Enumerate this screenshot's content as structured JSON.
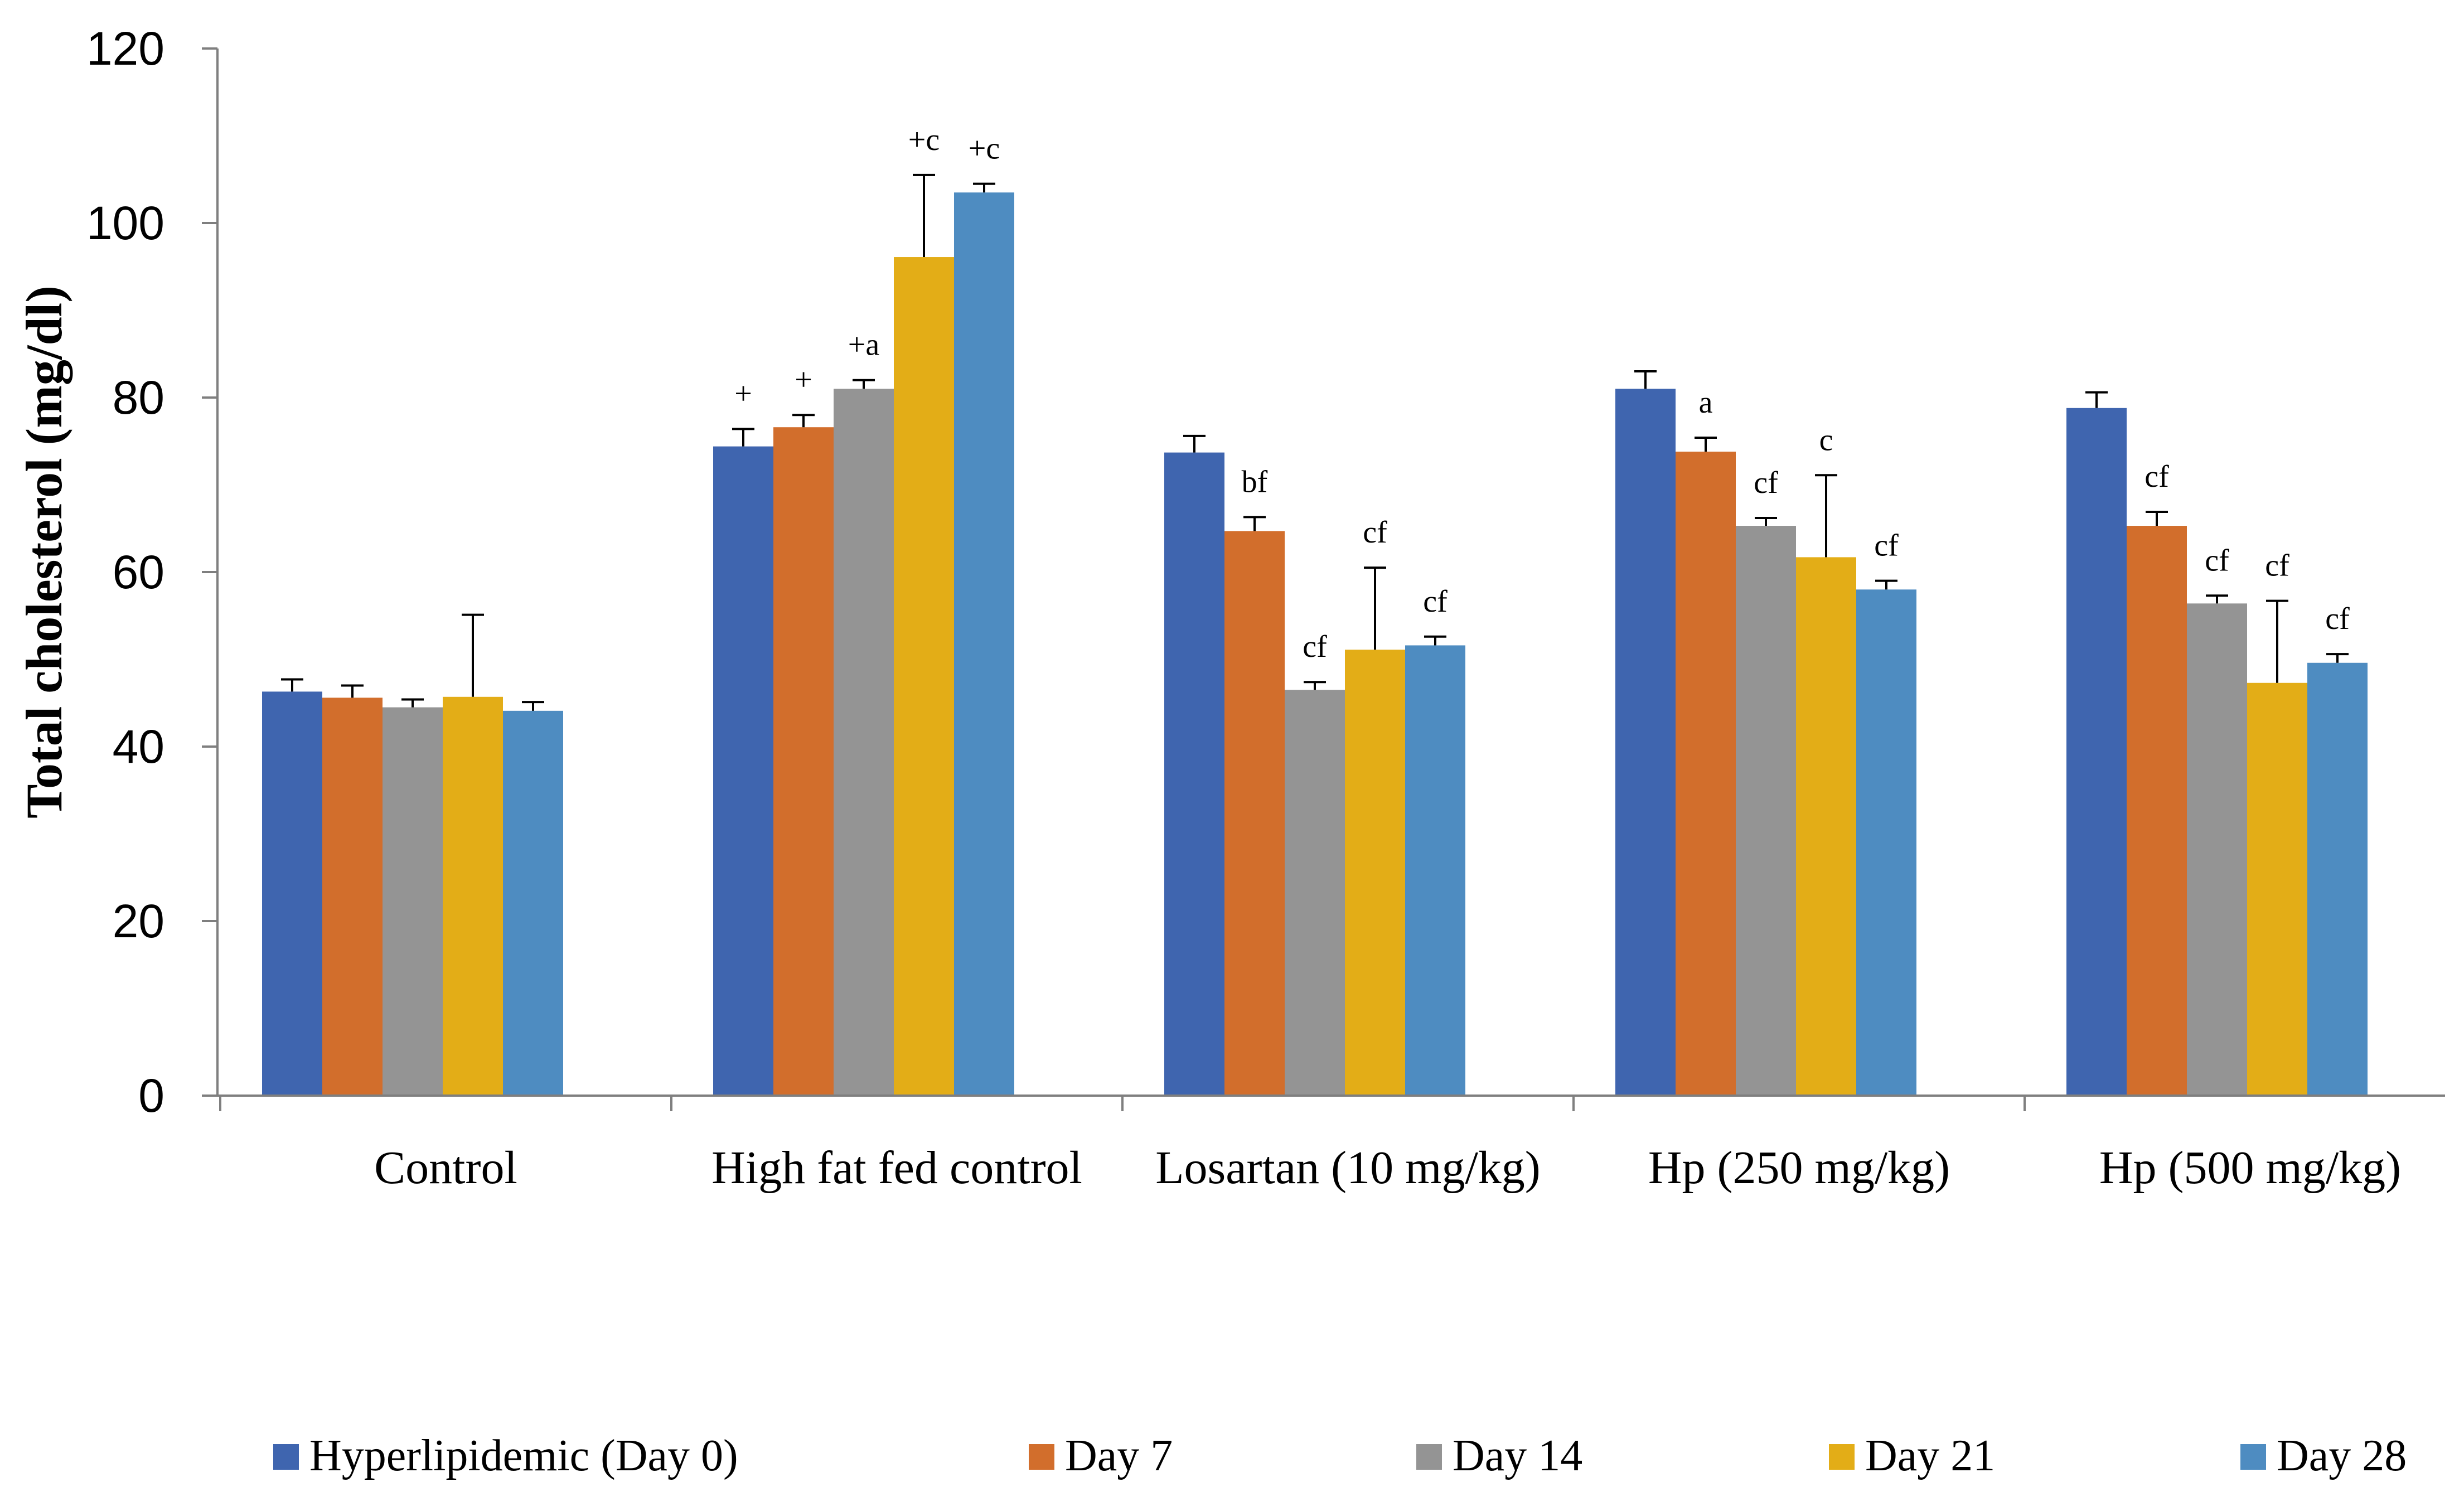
{
  "chart_data": {
    "type": "bar",
    "title": "",
    "xlabel": "",
    "ylabel": "Total cholesterol (mg/dl)",
    "ylim": [
      0,
      120
    ],
    "yticks": [
      0,
      20,
      40,
      60,
      80,
      100,
      120
    ],
    "grid": false,
    "legend_position": "bottom",
    "categories": [
      "Control",
      "High fat fed control",
      "Losartan (10 mg/kg)",
      "Hp (250 mg/kg)",
      "Hp (500 mg/kg)"
    ],
    "series": [
      {
        "name": "Hyperlipidemic (Day 0)",
        "color": "#3F65AF",
        "values": [
          46.3,
          74.4,
          73.7,
          81.0,
          78.8
        ],
        "errors": [
          1.4,
          2.0,
          1.9,
          2.0,
          1.8
        ],
        "annotations": [
          "",
          "+",
          "",
          "",
          ""
        ]
      },
      {
        "name": "Day 7",
        "color": "#D26E2C",
        "values": [
          45.6,
          76.6,
          64.7,
          73.8,
          65.3
        ],
        "errors": [
          1.4,
          1.4,
          1.6,
          1.6,
          1.6
        ],
        "annotations": [
          "",
          "+",
          "bf",
          "a",
          "cf"
        ]
      },
      {
        "name": "Day 14",
        "color": "#949494",
        "values": [
          44.5,
          81.0,
          46.5,
          65.3,
          56.4
        ],
        "errors": [
          0.9,
          1.0,
          0.9,
          0.9,
          0.9
        ],
        "annotations": [
          "",
          "+a",
          "cf",
          "cf",
          "cf"
        ]
      },
      {
        "name": "Day 21",
        "color": "#E3AD17",
        "values": [
          45.7,
          96.1,
          51.1,
          61.7,
          47.3
        ],
        "errors": [
          9.4,
          9.4,
          9.4,
          9.4,
          9.4
        ],
        "annotations": [
          "",
          "+c",
          "cf",
          "c",
          "cf"
        ]
      },
      {
        "name": "Day 28",
        "color": "#4E8CC1",
        "values": [
          44.1,
          103.5,
          51.6,
          58.0,
          49.6
        ],
        "errors": [
          1.0,
          1.0,
          1.0,
          1.0,
          1.0
        ],
        "annotations": [
          "",
          "+c",
          "cf",
          "cf",
          "cf"
        ]
      }
    ]
  }
}
